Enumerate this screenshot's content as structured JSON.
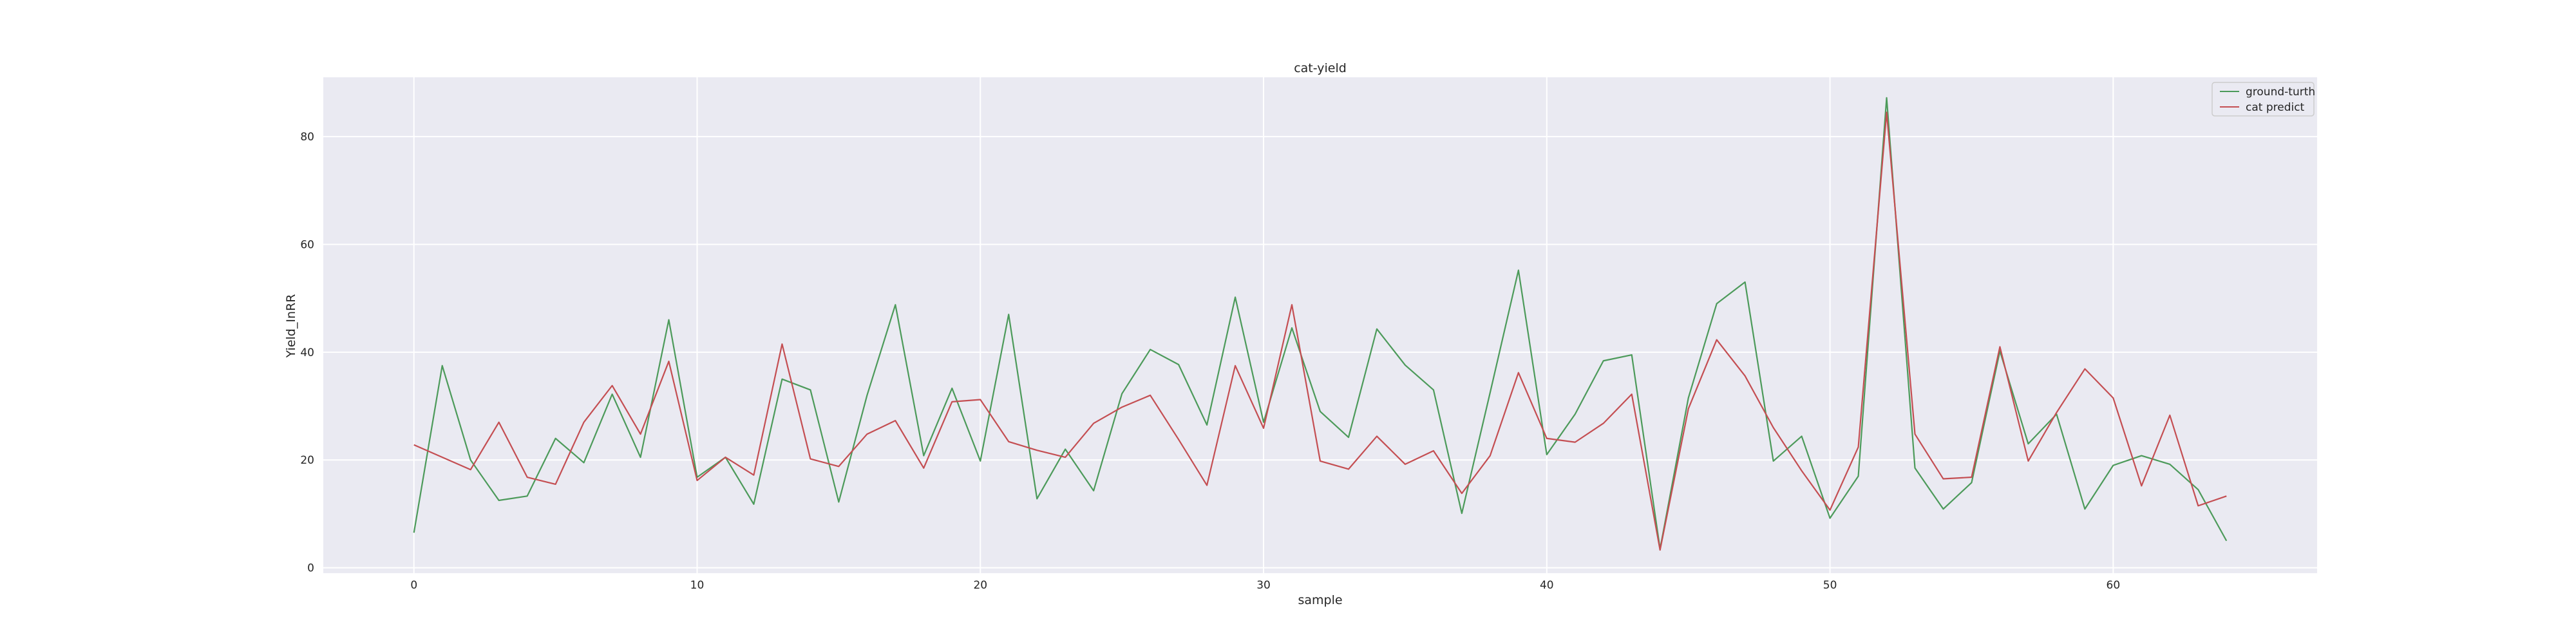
{
  "chart_data": {
    "type": "line",
    "title": "cat-yield",
    "xlabel": "sample",
    "ylabel": "Yield_InRR",
    "xlim": [
      -3.2,
      67.2
    ],
    "ylim": [
      -1,
      91
    ],
    "xticks": [
      0,
      10,
      20,
      30,
      40,
      50,
      60
    ],
    "yticks": [
      0,
      20,
      40,
      60,
      80
    ],
    "grid": true,
    "legend_position": "top-right",
    "series": [
      {
        "name": "ground-turth",
        "color": "#4c9a5a",
        "values": [
          6.5,
          37.5,
          20,
          12.5,
          13.3,
          24,
          19.5,
          32.2,
          20.5,
          46,
          16.8,
          20.5,
          11.8,
          35,
          33,
          12.2,
          32,
          48.8,
          20.8,
          33.3,
          19.8,
          47,
          12.8,
          22,
          14.3,
          32.3,
          40.5,
          37.7,
          26.5,
          50.2,
          27,
          44.5,
          29,
          24.2,
          44.3,
          37.6,
          33,
          10.1,
          32.5,
          55.2,
          21,
          28.5,
          38.4,
          39.5,
          3.5,
          31.5,
          49,
          53,
          19.8,
          24.4,
          9.2,
          17,
          87.2,
          18.5,
          10.9,
          15.8,
          40.2,
          23,
          28.5,
          10.9,
          19,
          20.8,
          19.2,
          14.5,
          5
        ]
      },
      {
        "name": "cat predict",
        "color": "#c44e52",
        "values": [
          22.8,
          20.5,
          18.2,
          27,
          16.8,
          15.5,
          27,
          33.8,
          24.8,
          38.3,
          16.2,
          20.5,
          17.2,
          41.5,
          20.2,
          18.8,
          24.8,
          27.3,
          18.5,
          30.8,
          31.2,
          23.4,
          21.8,
          20.5,
          26.8,
          29.8,
          32,
          23.8,
          15.3,
          37.5,
          25.9,
          48.8,
          19.8,
          18.3,
          24.4,
          19.2,
          21.7,
          13.8,
          20.8,
          36.2,
          24,
          23.3,
          26.8,
          32.2,
          3.3,
          29.5,
          42.3,
          35.6,
          26,
          18,
          10.7,
          22.4,
          84.5,
          24.8,
          16.5,
          16.8,
          41,
          19.8,
          28.8,
          36.9,
          31.5,
          15.2,
          28.3,
          11.5,
          13.3
        ]
      }
    ]
  }
}
